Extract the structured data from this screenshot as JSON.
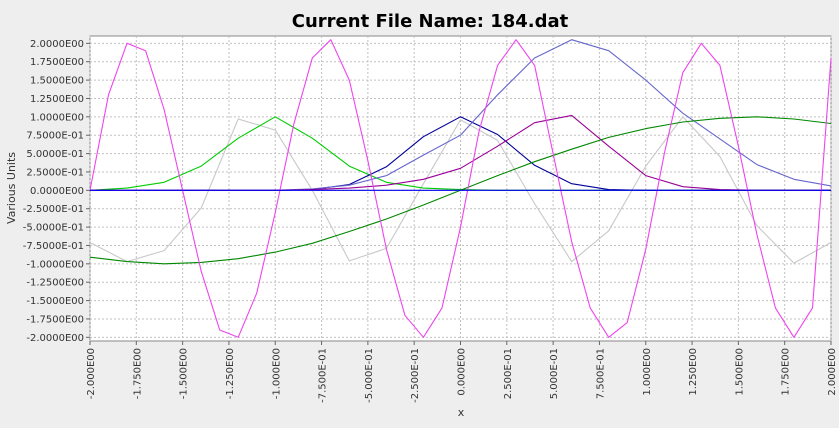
{
  "chart_data": {
    "type": "line",
    "title": "Current File Name: 184.dat",
    "xlabel": "x",
    "ylabel": "Various Units",
    "xlim": [
      -2.0,
      2.0
    ],
    "ylim": [
      -2.05,
      2.1
    ],
    "grid": true,
    "x_ticks": [
      -2.0,
      -1.75,
      -1.5,
      -1.25,
      -1.0,
      -0.75,
      -0.5,
      -0.25,
      0.0,
      0.25,
      0.5,
      0.75,
      1.0,
      1.25,
      1.5,
      1.75,
      2.0
    ],
    "x_tick_labels": [
      "-2.000E00",
      "-1.750E00",
      "-1.500E00",
      "-1.250E00",
      "-1.000E00",
      "-7.500E-01",
      "-5.000E-01",
      "-2.500E-01",
      "0.000E00",
      "2.500E-01",
      "5.000E-01",
      "7.500E-01",
      "1.000E00",
      "1.250E00",
      "1.500E00",
      "1.750E00",
      "2.000E00"
    ],
    "y_ticks": [
      2.0,
      1.75,
      1.5,
      1.25,
      1.0,
      0.75,
      0.5,
      0.25,
      0.0,
      -0.25,
      -0.5,
      -0.75,
      -1.0,
      -1.25,
      -1.5,
      -1.75,
      -2.0
    ],
    "y_tick_labels": [
      "2.0000E00",
      "1.7500E00",
      "1.5000E00",
      "1.2500E00",
      "1.0000E00",
      "7.5000E-01",
      "5.0000E-01",
      "2.5000E-01",
      "0.0000E00",
      "-2.5000E-01",
      "-5.0000E-01",
      "-7.5000E-01",
      "-1.0000E00",
      "-1.2500E00",
      "-1.5000E00",
      "-1.7500E00",
      "-2.0000E00"
    ],
    "series": [
      {
        "color": "#c8c8c8",
        "x": [
          -2.0,
          -1.8,
          -1.6,
          -1.4,
          -1.2,
          -1.0,
          -0.8,
          -0.6,
          -0.4,
          -0.2,
          0.0,
          0.2,
          0.4,
          0.6,
          0.8,
          1.0,
          1.2,
          1.4,
          1.6,
          1.8,
          2.0
        ],
        "y": [
          -0.71,
          -0.97,
          -0.82,
          -0.24,
          0.97,
          0.82,
          0.0,
          -0.96,
          -0.79,
          0.09,
          0.96,
          0.68,
          -0.18,
          -0.97,
          -0.55,
          0.33,
          1.0,
          0.46,
          -0.48,
          -0.99,
          -0.71
        ]
      },
      {
        "color": "#00cc00",
        "x": [
          -2.0,
          -1.8,
          -1.6,
          -1.4,
          -1.2,
          -1.0,
          -0.8,
          -0.6,
          -0.4,
          -0.2,
          0.0,
          0.2,
          0.4,
          0.6,
          0.8,
          1.0,
          1.2,
          1.4,
          1.6,
          1.8,
          2.0
        ],
        "y": [
          0.0,
          0.03,
          0.11,
          0.33,
          0.71,
          1.0,
          0.71,
          0.33,
          0.11,
          0.03,
          0.01,
          0.0,
          0.0,
          0.0,
          0.0,
          0.0,
          0.0,
          0.0,
          0.0,
          0.0,
          0.0
        ]
      },
      {
        "color": "#000099",
        "x": [
          -2.0,
          -1.8,
          -1.6,
          -1.4,
          -1.2,
          -1.0,
          -0.8,
          -0.6,
          -0.4,
          -0.2,
          0.0,
          0.2,
          0.4,
          0.6,
          0.8,
          1.0,
          1.2,
          1.4,
          1.6,
          1.8,
          2.0
        ],
        "y": [
          0.0,
          0.0,
          0.0,
          0.0,
          0.0,
          0.0,
          0.01,
          0.08,
          0.32,
          0.73,
          1.0,
          0.76,
          0.34,
          0.09,
          0.01,
          0.0,
          0.0,
          0.0,
          0.0,
          0.0,
          0.0
        ]
      },
      {
        "color": "#6666cc",
        "x": [
          -2.0,
          -1.8,
          -1.6,
          -1.4,
          -1.2,
          -1.0,
          -0.8,
          -0.6,
          -0.4,
          -0.2,
          0.0,
          0.2,
          0.4,
          0.6,
          0.8,
          1.0,
          1.2,
          1.4,
          1.6,
          1.8,
          2.0
        ],
        "y": [
          0.0,
          0.0,
          0.0,
          0.0,
          0.0,
          0.0,
          0.02,
          0.07,
          0.2,
          0.48,
          0.75,
          1.3,
          1.8,
          2.05,
          1.9,
          1.5,
          1.05,
          0.7,
          0.35,
          0.15,
          0.06
        ]
      },
      {
        "color": "#990099",
        "x": [
          -2.0,
          -1.8,
          -1.6,
          -1.4,
          -1.2,
          -1.0,
          -0.8,
          -0.6,
          -0.4,
          -0.2,
          0.0,
          0.2,
          0.4,
          0.6,
          0.8,
          1.0,
          1.2,
          1.4,
          1.6,
          1.8,
          2.0
        ],
        "y": [
          0.0,
          0.0,
          0.0,
          0.0,
          0.0,
          0.0,
          0.01,
          0.03,
          0.07,
          0.15,
          0.3,
          0.6,
          0.92,
          1.02,
          0.6,
          0.2,
          0.05,
          0.01,
          0.0,
          0.0,
          0.0
        ]
      },
      {
        "color": "#008800",
        "x": [
          -2.0,
          -1.8,
          -1.6,
          -1.4,
          -1.2,
          -1.0,
          -0.8,
          -0.6,
          -0.4,
          -0.2,
          0.0,
          0.2,
          0.4,
          0.6,
          0.8,
          1.0,
          1.2,
          1.4,
          1.6,
          1.8,
          2.0
        ],
        "y": [
          -0.91,
          -0.97,
          -1.0,
          -0.98,
          -0.93,
          -0.84,
          -0.72,
          -0.56,
          -0.39,
          -0.2,
          0.0,
          0.2,
          0.39,
          0.56,
          0.72,
          0.84,
          0.93,
          0.98,
          1.0,
          0.97,
          0.91
        ]
      },
      {
        "color": "#ee44ee",
        "x": [
          -2.0,
          -1.9,
          -1.8,
          -1.7,
          -1.6,
          -1.5,
          -1.4,
          -1.3,
          -1.2,
          -1.1,
          -1.0,
          -0.9,
          -0.8,
          -0.7,
          -0.6,
          -0.5,
          -0.4,
          -0.3,
          -0.2,
          -0.1,
          0.0,
          0.1,
          0.2,
          0.3,
          0.4,
          0.5,
          0.6,
          0.7,
          0.8,
          0.9,
          1.0,
          1.1,
          1.2,
          1.3,
          1.4,
          1.5,
          1.6,
          1.7,
          1.8,
          1.9,
          2.0
        ],
        "y": [
          0.0,
          1.3,
          2.0,
          1.9,
          1.1,
          0.0,
          -1.1,
          -1.9,
          -2.0,
          -1.4,
          -0.3,
          0.9,
          1.8,
          2.05,
          1.5,
          0.4,
          -0.8,
          -1.7,
          -2.0,
          -1.6,
          -0.5,
          0.8,
          1.7,
          2.05,
          1.7,
          0.5,
          -0.7,
          -1.6,
          -2.0,
          -1.8,
          -0.8,
          0.5,
          1.6,
          2.0,
          1.7,
          0.6,
          -0.6,
          -1.6,
          -2.0,
          -1.6,
          1.8
        ]
      },
      {
        "color": "#0000ee",
        "x": [
          -2.0,
          2.0
        ],
        "y": [
          0.0,
          0.0
        ]
      }
    ]
  }
}
